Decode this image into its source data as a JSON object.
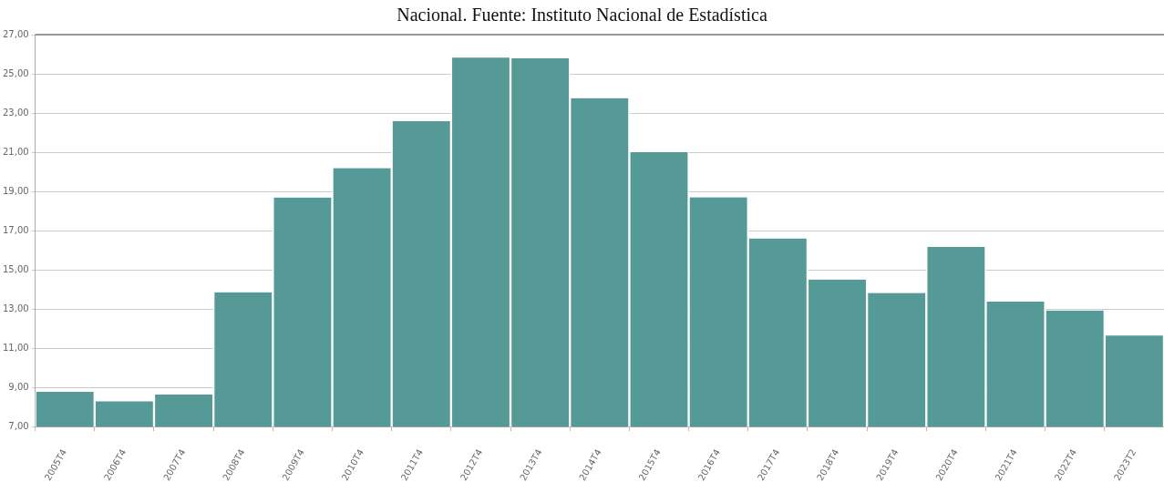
{
  "chart_data": {
    "type": "bar",
    "title": "Nacional. Fuente: Instituto Nacional de Estadística",
    "categories": [
      "2005T4",
      "2006T4",
      "2007T4",
      "2008T4",
      "2009T4",
      "2010T4",
      "2011T4",
      "2012T4",
      "2013T4",
      "2014T4",
      "2015T4",
      "2016T4",
      "2017T4",
      "2018T4",
      "2019T4",
      "2020T4",
      "2021T4",
      "2022T4",
      "2023T2"
    ],
    "values": [
      8.77,
      8.29,
      8.63,
      13.85,
      18.69,
      20.19,
      22.58,
      25.83,
      25.79,
      23.76,
      21.0,
      18.7,
      16.6,
      14.5,
      13.82,
      16.17,
      13.38,
      12.92,
      11.65
    ],
    "color": "#559a96",
    "ylim": [
      7,
      27
    ],
    "yticks": [
      {
        "value": 7,
        "label": "7,00"
      },
      {
        "value": 9,
        "label": "9,00"
      },
      {
        "value": 11,
        "label": "11,00"
      },
      {
        "value": 13,
        "label": "13,00"
      },
      {
        "value": 15,
        "label": "15,00"
      },
      {
        "value": 17,
        "label": "17,00"
      },
      {
        "value": 19,
        "label": "19,00"
      },
      {
        "value": 21,
        "label": "21,00"
      },
      {
        "value": 23,
        "label": "23,00"
      },
      {
        "value": 25,
        "label": "25,00"
      },
      {
        "value": 27,
        "label": "27,00"
      }
    ],
    "grid": "y"
  }
}
